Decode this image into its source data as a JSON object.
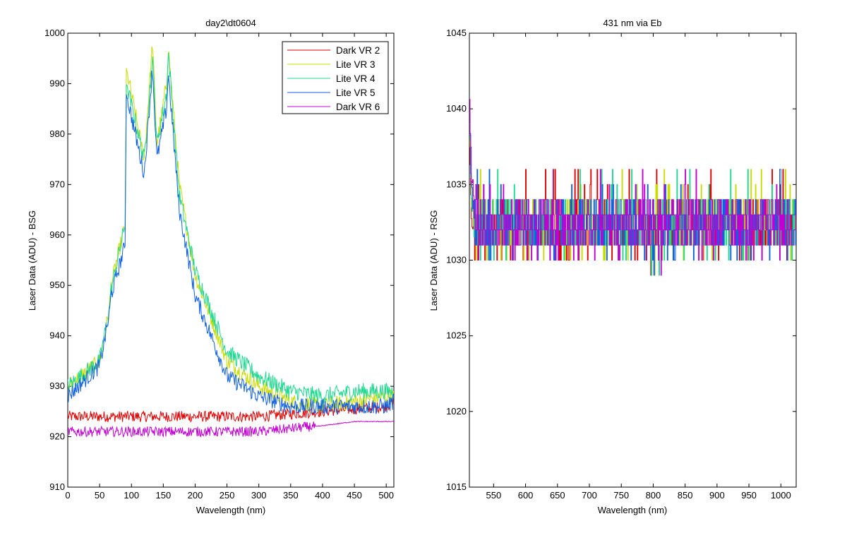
{
  "chart_data": [
    {
      "type": "line",
      "title": "day2\\dt0604",
      "xlabel": "Wavelength (nm)",
      "ylabel": "Laser Data (ADU) - BSG",
      "xlim": [
        0,
        512
      ],
      "ylim": [
        910,
        1000
      ],
      "xticks": [
        0,
        50,
        100,
        150,
        200,
        250,
        300,
        350,
        400,
        450,
        500
      ],
      "yticks": [
        910,
        920,
        930,
        940,
        950,
        960,
        970,
        980,
        990,
        1000
      ],
      "grid": false,
      "legend_position": "top-right",
      "series": [
        {
          "name": "Dark VR 2",
          "color": "#e00000",
          "pattern": "dark",
          "base": 923.8,
          "noise": 1.1,
          "x": [
            0,
            100,
            200,
            300,
            400,
            500,
            512
          ],
          "values": [
            924,
            924,
            924,
            924,
            925,
            926,
            927
          ]
        },
        {
          "name": "Lite VR 3",
          "color": "#c8dc00",
          "pattern": "lite",
          "scale": 1.02,
          "offset": 0,
          "noise": 1.6,
          "x": [
            0,
            50,
            65,
            68,
            90,
            92,
            120,
            133,
            140,
            155,
            158,
            175,
            200,
            250,
            300,
            350,
            400,
            450,
            500,
            512
          ],
          "values": [
            930,
            935,
            945,
            950,
            962,
            993,
            975,
            998,
            978,
            990,
            997,
            970,
            952,
            935,
            930,
            927,
            926,
            927,
            928,
            928
          ]
        },
        {
          "name": "Lite VR 4",
          "color": "#20d890",
          "pattern": "lite",
          "scale": 1.0,
          "offset": 0,
          "noise": 1.7,
          "x": [
            0,
            50,
            65,
            68,
            90,
            92,
            120,
            133,
            140,
            155,
            158,
            175,
            200,
            250,
            300,
            350,
            400,
            450,
            500,
            512
          ],
          "values": [
            930,
            935,
            945,
            949,
            962,
            990,
            975,
            995,
            978,
            988,
            996,
            968,
            953,
            937,
            932,
            929,
            928,
            929,
            929,
            929
          ]
        },
        {
          "name": "Lite VR 5",
          "color": "#1060e0",
          "pattern": "lite",
          "scale": 0.98,
          "offset": -0.5,
          "noise": 1.6,
          "x": [
            0,
            50,
            65,
            68,
            90,
            92,
            120,
            133,
            140,
            155,
            158,
            175,
            200,
            250,
            300,
            350,
            400,
            450,
            500,
            512
          ],
          "values": [
            928,
            934,
            944,
            948,
            958,
            988,
            972,
            993,
            975,
            985,
            992,
            965,
            948,
            932,
            928,
            926,
            926,
            926,
            926,
            927
          ]
        },
        {
          "name": "Dark VR 6",
          "color": "#c000d0",
          "pattern": "dark6",
          "base": 921.3,
          "noise": 1.0,
          "x": [
            0,
            100,
            200,
            300,
            380,
            390,
            450,
            512
          ],
          "values": [
            921,
            921,
            921,
            921,
            922,
            922,
            923,
            923
          ]
        }
      ]
    },
    {
      "type": "line",
      "title": "431 nm via Eb",
      "xlabel": "Wavelength (nm)",
      "ylabel": "Laser Data (ADU) - RSG",
      "xlim": [
        512,
        1024
      ],
      "ylim": [
        1015,
        1045
      ],
      "xticks": [
        550,
        600,
        650,
        700,
        750,
        800,
        850,
        900,
        950,
        1000
      ],
      "yticks": [
        1015,
        1020,
        1025,
        1030,
        1035,
        1040,
        1045
      ],
      "grid": false,
      "series": [
        {
          "name": "",
          "color": "#e00000",
          "x": [
            512,
            515,
            520,
            600,
            700,
            800,
            900,
            1000,
            1024
          ],
          "values": [
            1037,
            1033,
            1032,
            1032,
            1032,
            1032,
            1032,
            1032,
            1032
          ]
        },
        {
          "name": "",
          "color": "#c8dc00",
          "x": [
            512,
            515,
            520,
            600,
            700,
            800,
            900,
            1000,
            1024
          ],
          "values": [
            1038,
            1034,
            1032,
            1032,
            1032,
            1032,
            1032,
            1032,
            1032
          ]
        },
        {
          "name": "",
          "color": "#20d890",
          "x": [
            512,
            515,
            520,
            600,
            700,
            800,
            900,
            1000,
            1024
          ],
          "values": [
            1039,
            1034,
            1032,
            1032,
            1032,
            1032,
            1032,
            1032,
            1032
          ]
        },
        {
          "name": "",
          "color": "#1060e0",
          "x": [
            512,
            515,
            520,
            600,
            700,
            800,
            900,
            1000,
            1024
          ],
          "values": [
            1040,
            1035,
            1032,
            1032,
            1032,
            1032,
            1032,
            1032,
            1032
          ]
        },
        {
          "name": "",
          "color": "#c000d0",
          "x": [
            512,
            515,
            520,
            600,
            700,
            800,
            900,
            1000,
            1024
          ],
          "values": [
            1041,
            1036,
            1032,
            1032,
            1032,
            1032,
            1032,
            1032,
            1032
          ]
        }
      ]
    }
  ]
}
